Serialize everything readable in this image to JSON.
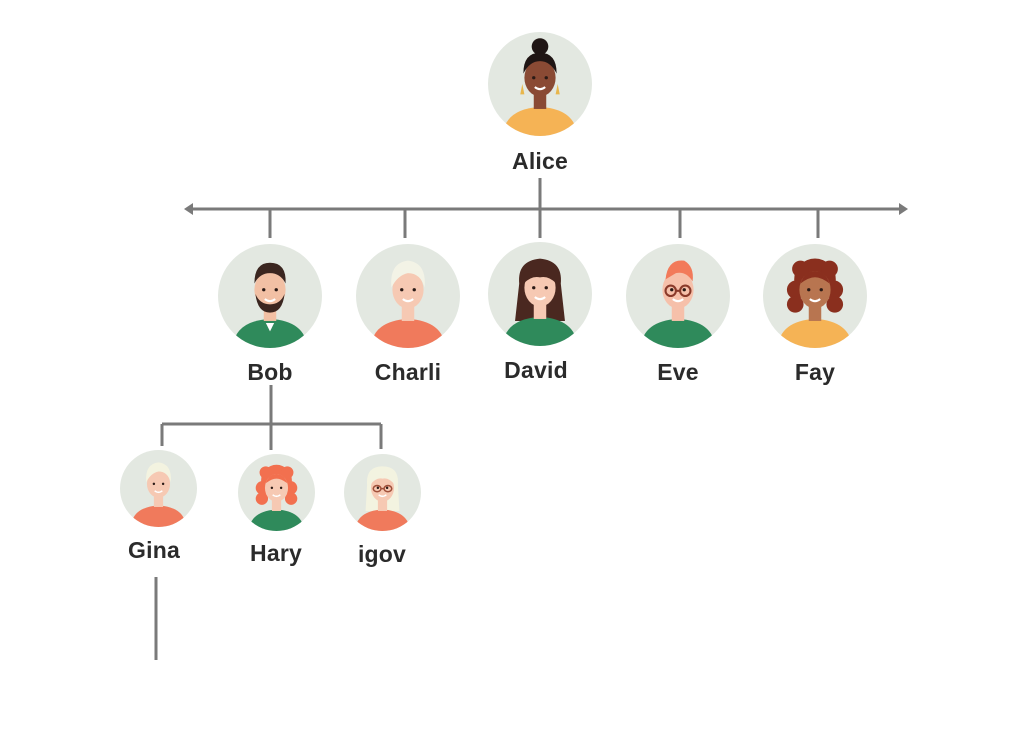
{
  "colors": {
    "line": "#7a7a7a",
    "avatar_bg": "#e3e8e1",
    "text": "#2b2b2b"
  },
  "people": [
    {
      "id": "alice",
      "name": "Alice",
      "level": 1,
      "skin": "#8a4a34",
      "hair": "#1f1514",
      "shirt": "#f5b355",
      "style": "bun"
    },
    {
      "id": "bob",
      "name": "Bob",
      "level": 2,
      "skin": "#f2c0a4",
      "hair": "#3b2620",
      "shirt": "#2f8a5b",
      "style": "beard"
    },
    {
      "id": "charli",
      "name": "Charli",
      "level": 2,
      "skin": "#f6c9b3",
      "hair": "#f3f3e6",
      "shirt": "#f07a5c",
      "style": "short"
    },
    {
      "id": "david",
      "name": "David",
      "level": 2,
      "skin": "#f6c9b3",
      "hair": "#4a2820",
      "shirt": "#2f8a5b",
      "style": "long"
    },
    {
      "id": "eve",
      "name": "Eve",
      "level": 2,
      "skin": "#f6c0aa",
      "hair": "#f27a5a",
      "shirt": "#2f8a5b",
      "style": "glasses"
    },
    {
      "id": "fay",
      "name": "Fay",
      "level": 2,
      "skin": "#b87550",
      "hair": "#8a2f1e",
      "shirt": "#f5b355",
      "style": "curly"
    },
    {
      "id": "gina",
      "name": "Gina",
      "level": 3,
      "skin": "#f6c9b3",
      "hair": "#f3f3e0",
      "shirt": "#f07a5c",
      "style": "short"
    },
    {
      "id": "hary",
      "name": "Hary",
      "level": 3,
      "skin": "#f6c9b3",
      "hair": "#f2704f",
      "shirt": "#2f8a5b",
      "style": "curly"
    },
    {
      "id": "igov",
      "name": "igov",
      "level": 3,
      "skin": "#f6c9b3",
      "hair": "#f3f3e0",
      "shirt": "#f07a5c",
      "style": "longglasses"
    }
  ],
  "relations": [
    {
      "parent": "Alice",
      "children": [
        "Bob",
        "Charli",
        "David",
        "Eve",
        "Fay"
      ]
    },
    {
      "parent": "Bob",
      "children": [
        "Gina",
        "Hary",
        "igov"
      ]
    },
    {
      "parent": "Gina",
      "children": []
    }
  ]
}
